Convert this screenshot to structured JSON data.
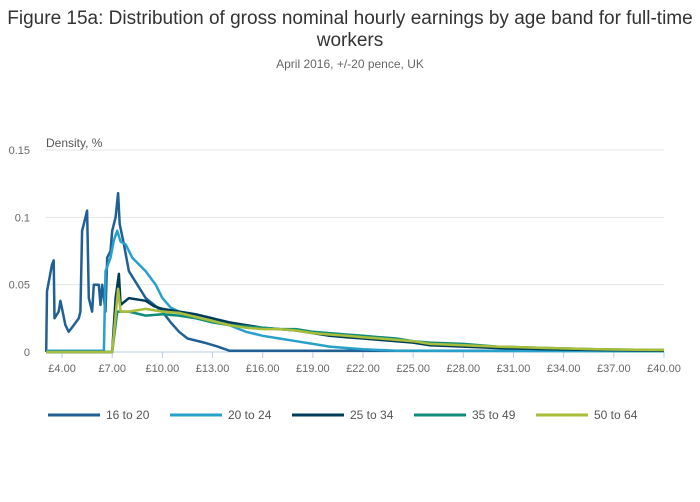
{
  "chart_data": {
    "type": "line",
    "title": "Figure 15a: Distribution of gross nominal hourly earnings by age band for full-time workers",
    "subtitle": "April 2016, +/-20 pence, UK",
    "ylabel": "Density, %",
    "xlabel": "",
    "xlim": [
      3.04,
      40
    ],
    "ylim": [
      0,
      0.15
    ],
    "x_ticks": [
      4,
      7,
      10,
      13,
      16,
      19,
      22,
      25,
      28,
      31,
      34,
      37,
      40
    ],
    "x_tick_labels": [
      "£4.00",
      "£7.00",
      "£10.00",
      "£13.00",
      "£16.00",
      "£19.00",
      "£22.00",
      "£25.00",
      "£28.00",
      "£31.00",
      "£34.00",
      "£37.00",
      "£40.00"
    ],
    "y_ticks": [
      0,
      0.05,
      0.1,
      0.15
    ],
    "y_tick_labels": [
      "0",
      "0.05",
      "0.1",
      "0.15"
    ],
    "grid": true,
    "legend": "bottom",
    "series": [
      {
        "name": "16 to 20",
        "color": "#206095",
        "x": [
          3.05,
          3.1,
          3.4,
          3.5,
          3.55,
          3.8,
          3.9,
          4.2,
          4.4,
          4.7,
          5.0,
          5.1,
          5.2,
          5.4,
          5.5,
          5.6,
          5.8,
          5.9,
          6.2,
          6.3,
          6.4,
          6.6,
          6.7,
          6.9,
          7.0,
          7.2,
          7.35,
          7.45,
          7.7,
          8.0,
          8.5,
          9.0,
          10.0,
          10.5,
          11.0,
          11.5,
          12.5,
          13.3,
          14.0,
          40
        ],
        "y": [
          0,
          0.045,
          0.065,
          0.068,
          0.025,
          0.03,
          0.038,
          0.02,
          0.015,
          0.02,
          0.025,
          0.03,
          0.09,
          0.1,
          0.105,
          0.04,
          0.03,
          0.05,
          0.05,
          0.035,
          0.05,
          0.03,
          0.07,
          0.075,
          0.09,
          0.1,
          0.118,
          0.095,
          0.08,
          0.06,
          0.05,
          0.04,
          0.03,
          0.022,
          0.015,
          0.01,
          0.007,
          0.004,
          0.001,
          0.001
        ]
      },
      {
        "name": "20 to 24",
        "color": "#27a0cc",
        "x": [
          3.05,
          6.5,
          6.6,
          6.9,
          7.1,
          7.3,
          7.5,
          7.8,
          8.2,
          8.6,
          9.0,
          9.6,
          10.0,
          10.5,
          11,
          12,
          13,
          14,
          15,
          16,
          17,
          18,
          19,
          20,
          21,
          22,
          24,
          40
        ],
        "y": [
          0.001,
          0.001,
          0.06,
          0.07,
          0.083,
          0.09,
          0.082,
          0.08,
          0.07,
          0.065,
          0.06,
          0.05,
          0.04,
          0.033,
          0.03,
          0.028,
          0.025,
          0.02,
          0.015,
          0.012,
          0.01,
          0.008,
          0.006,
          0.004,
          0.003,
          0.002,
          0.001,
          0.0005
        ]
      },
      {
        "name": "25 to 34",
        "color": "#003c57",
        "x": [
          3.05,
          7.0,
          7.2,
          7.4,
          7.5,
          8,
          9,
          9.5,
          10,
          11,
          12,
          13,
          14,
          15,
          16,
          17,
          18,
          19,
          20,
          21,
          22,
          23,
          24,
          25,
          26,
          28,
          30,
          33,
          36,
          40
        ],
        "y": [
          0,
          0,
          0.04,
          0.058,
          0.035,
          0.04,
          0.038,
          0.034,
          0.032,
          0.03,
          0.028,
          0.025,
          0.022,
          0.02,
          0.018,
          0.017,
          0.016,
          0.014,
          0.012,
          0.011,
          0.01,
          0.009,
          0.008,
          0.007,
          0.005,
          0.004,
          0.003,
          0.002,
          0.0015,
          0.001
        ]
      },
      {
        "name": "35 to 49",
        "color": "#118c7b",
        "x": [
          3.05,
          7.0,
          7.3,
          8,
          9,
          10,
          11,
          12,
          13,
          14,
          15,
          16,
          17,
          18,
          19,
          20,
          21,
          22,
          23,
          24,
          25,
          26,
          28,
          30,
          33,
          36,
          40
        ],
        "y": [
          0,
          0,
          0.03,
          0.03,
          0.027,
          0.028,
          0.027,
          0.025,
          0.022,
          0.02,
          0.019,
          0.018,
          0.017,
          0.017,
          0.015,
          0.014,
          0.013,
          0.012,
          0.011,
          0.01,
          0.008,
          0.007,
          0.006,
          0.004,
          0.003,
          0.002,
          0.0015
        ]
      },
      {
        "name": "50 to 64",
        "color": "#a8bd3a",
        "x": [
          3.05,
          7.0,
          7.35,
          7.5,
          8,
          9,
          10,
          11,
          12,
          13,
          14,
          15,
          16,
          17,
          18,
          19,
          20,
          21,
          22,
          23,
          24,
          25,
          26,
          28,
          30,
          33,
          36,
          40
        ],
        "y": [
          0,
          0,
          0.047,
          0.03,
          0.03,
          0.032,
          0.03,
          0.029,
          0.026,
          0.023,
          0.02,
          0.018,
          0.017,
          0.017,
          0.016,
          0.014,
          0.013,
          0.012,
          0.011,
          0.01,
          0.009,
          0.008,
          0.006,
          0.005,
          0.004,
          0.003,
          0.002,
          0.0015
        ]
      }
    ]
  }
}
